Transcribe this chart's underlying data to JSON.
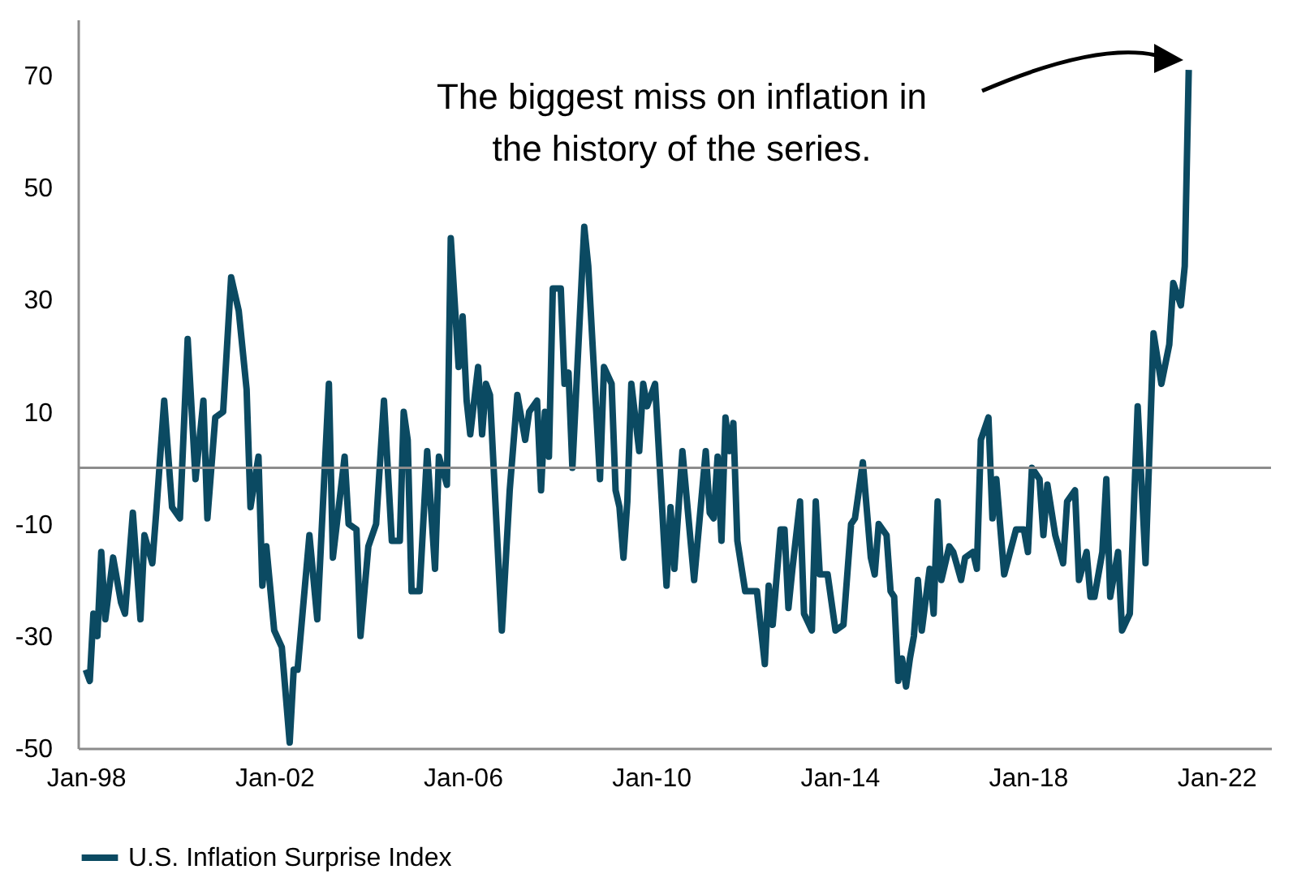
{
  "chart_data": {
    "type": "line",
    "x": [
      "1998-01",
      "1998-02",
      "1998-03",
      "1998-04",
      "1998-05",
      "1998-06",
      "1998-08",
      "1998-10",
      "1998-11",
      "1999-01",
      "1999-03",
      "1999-04",
      "1999-06",
      "1999-07",
      "1999-09",
      "1999-11",
      "2000-01",
      "2000-03",
      "2000-05",
      "2000-07",
      "2000-08",
      "2000-10",
      "2000-12",
      "2001-02",
      "2001-04",
      "2001-06",
      "2001-07",
      "2001-09",
      "2001-10",
      "2001-11",
      "2002-01",
      "2002-03",
      "2002-05",
      "2002-06",
      "2002-07",
      "2002-10",
      "2002-12",
      "2003-03",
      "2003-04",
      "2003-07",
      "2003-08",
      "2003-10",
      "2003-11",
      "2004-01",
      "2004-03",
      "2004-05",
      "2004-07",
      "2004-09",
      "2004-10",
      "2004-11",
      "2004-12",
      "2005-02",
      "2005-04",
      "2005-06",
      "2005-07",
      "2005-09",
      "2005-10",
      "2005-12",
      "2006-01",
      "2006-02",
      "2006-03",
      "2006-05",
      "2006-06",
      "2006-07",
      "2006-08",
      "2006-11",
      "2007-01",
      "2007-03",
      "2007-05",
      "2007-06",
      "2007-08",
      "2007-09",
      "2007-10",
      "2007-11",
      "2007-12",
      "2008-02",
      "2008-03",
      "2008-04",
      "2008-05",
      "2008-08",
      "2008-09",
      "2008-12",
      "2009-01",
      "2009-03",
      "2009-04",
      "2009-05",
      "2009-06",
      "2009-07",
      "2009-08",
      "2009-10",
      "2009-11",
      "2009-12",
      "2010-02",
      "2010-05",
      "2010-06",
      "2010-07",
      "2010-09",
      "2010-12",
      "2011-03",
      "2011-04",
      "2011-05",
      "2011-06",
      "2011-07",
      "2011-08",
      "2011-09",
      "2011-10",
      "2011-11",
      "2012-01",
      "2012-02",
      "2012-04",
      "2012-06",
      "2012-07",
      "2012-08",
      "2012-10",
      "2012-11",
      "2012-12",
      "2013-01",
      "2013-03",
      "2013-04",
      "2013-06",
      "2013-07",
      "2013-08",
      "2013-10",
      "2013-12",
      "2014-02",
      "2014-04",
      "2014-05",
      "2014-07",
      "2014-09",
      "2014-10",
      "2014-11",
      "2015-01",
      "2015-02",
      "2015-03",
      "2015-04",
      "2015-05",
      "2015-06",
      "2015-07",
      "2015-08",
      "2015-09",
      "2015-10",
      "2015-12",
      "2016-01",
      "2016-02",
      "2016-03",
      "2016-05",
      "2016-06",
      "2016-08",
      "2016-09",
      "2016-11",
      "2016-12",
      "2017-01",
      "2017-03",
      "2017-04",
      "2017-05",
      "2017-07",
      "2017-10",
      "2017-12",
      "2018-01",
      "2018-02",
      "2018-04",
      "2018-05",
      "2018-06",
      "2018-08",
      "2018-10",
      "2018-11",
      "2019-01",
      "2019-02",
      "2019-04",
      "2019-05",
      "2019-06",
      "2019-08",
      "2019-09",
      "2019-10",
      "2019-12",
      "2020-01",
      "2020-03",
      "2020-05",
      "2020-07",
      "2020-09",
      "2020-11",
      "2021-01",
      "2021-02",
      "2021-04",
      "2021-05",
      "2021-06"
    ],
    "series": [
      {
        "name": "U.S. Inflation Surprise Index",
        "color": "#0b4a62",
        "values": [
          -36,
          -38,
          -26,
          -30,
          -15,
          -27,
          -16,
          -24,
          -26,
          -8,
          -27,
          -12,
          -17,
          -8,
          12,
          -7,
          -9,
          23,
          -2,
          12,
          -9,
          9,
          10,
          34,
          28,
          14,
          -7,
          2,
          -21,
          -14,
          -29,
          -32,
          -49,
          -36,
          -36,
          -12,
          -27,
          15,
          -16,
          2,
          -10,
          -11,
          -30,
          -14,
          -10,
          12,
          -13,
          -13,
          10,
          5,
          -22,
          -22,
          3,
          -18,
          2,
          -3,
          41,
          18,
          27,
          12,
          6,
          18,
          6,
          15,
          13,
          -29,
          -4,
          13,
          5,
          10,
          12,
          -4,
          10,
          2,
          32,
          32,
          15,
          17,
          0,
          43,
          36,
          -2,
          18,
          15,
          -4,
          -7,
          -16,
          -6,
          15,
          3,
          15,
          11,
          15,
          -21,
          -7,
          -18,
          3,
          -20,
          3,
          -8,
          -9,
          2,
          -13,
          9,
          3,
          8,
          -13,
          -22,
          -22,
          -22,
          -35,
          -21,
          -28,
          -11,
          -11,
          -25,
          -18,
          -6,
          -26,
          -29,
          -6,
          -19,
          -19,
          -29,
          -28,
          -10,
          -9,
          1,
          -16,
          -19,
          -10,
          -12,
          -22,
          -23,
          -38,
          -34,
          -39,
          -34,
          -30,
          -20,
          -29,
          -18,
          -26,
          -6,
          -20,
          -14,
          -15,
          -20,
          -16,
          -15,
          -18,
          5,
          9,
          -9,
          -2,
          -19,
          -11,
          -11,
          -15,
          0,
          -2,
          -12,
          -3,
          -12,
          -17,
          -6,
          -4,
          -20,
          -15,
          -23,
          -23,
          -15,
          -2,
          -23,
          -15,
          -29,
          -26,
          11,
          -17,
          24,
          15,
          22,
          33,
          29,
          36,
          71
        ]
      }
    ],
    "xlim": [
      "1997-11",
      "2023-03"
    ],
    "xticks": [
      {
        "value": "1998-01",
        "label": "Jan-98"
      },
      {
        "value": "2002-01",
        "label": "Jan-02"
      },
      {
        "value": "2006-01",
        "label": "Jan-06"
      },
      {
        "value": "2010-01",
        "label": "Jan-10"
      },
      {
        "value": "2014-01",
        "label": "Jan-14"
      },
      {
        "value": "2018-01",
        "label": "Jan-18"
      },
      {
        "value": "2022-01",
        "label": "Jan-22"
      }
    ],
    "ylim": [
      -50,
      80
    ],
    "yticks": [
      -50,
      -30,
      -10,
      10,
      30,
      50,
      70
    ],
    "ref_lines": [
      {
        "axis": "y",
        "value": 0,
        "color": "#8c8c8c"
      }
    ],
    "annotations": [
      "The biggest miss on inflation in the history of the series."
    ],
    "grid": false,
    "legend": "bottom"
  }
}
